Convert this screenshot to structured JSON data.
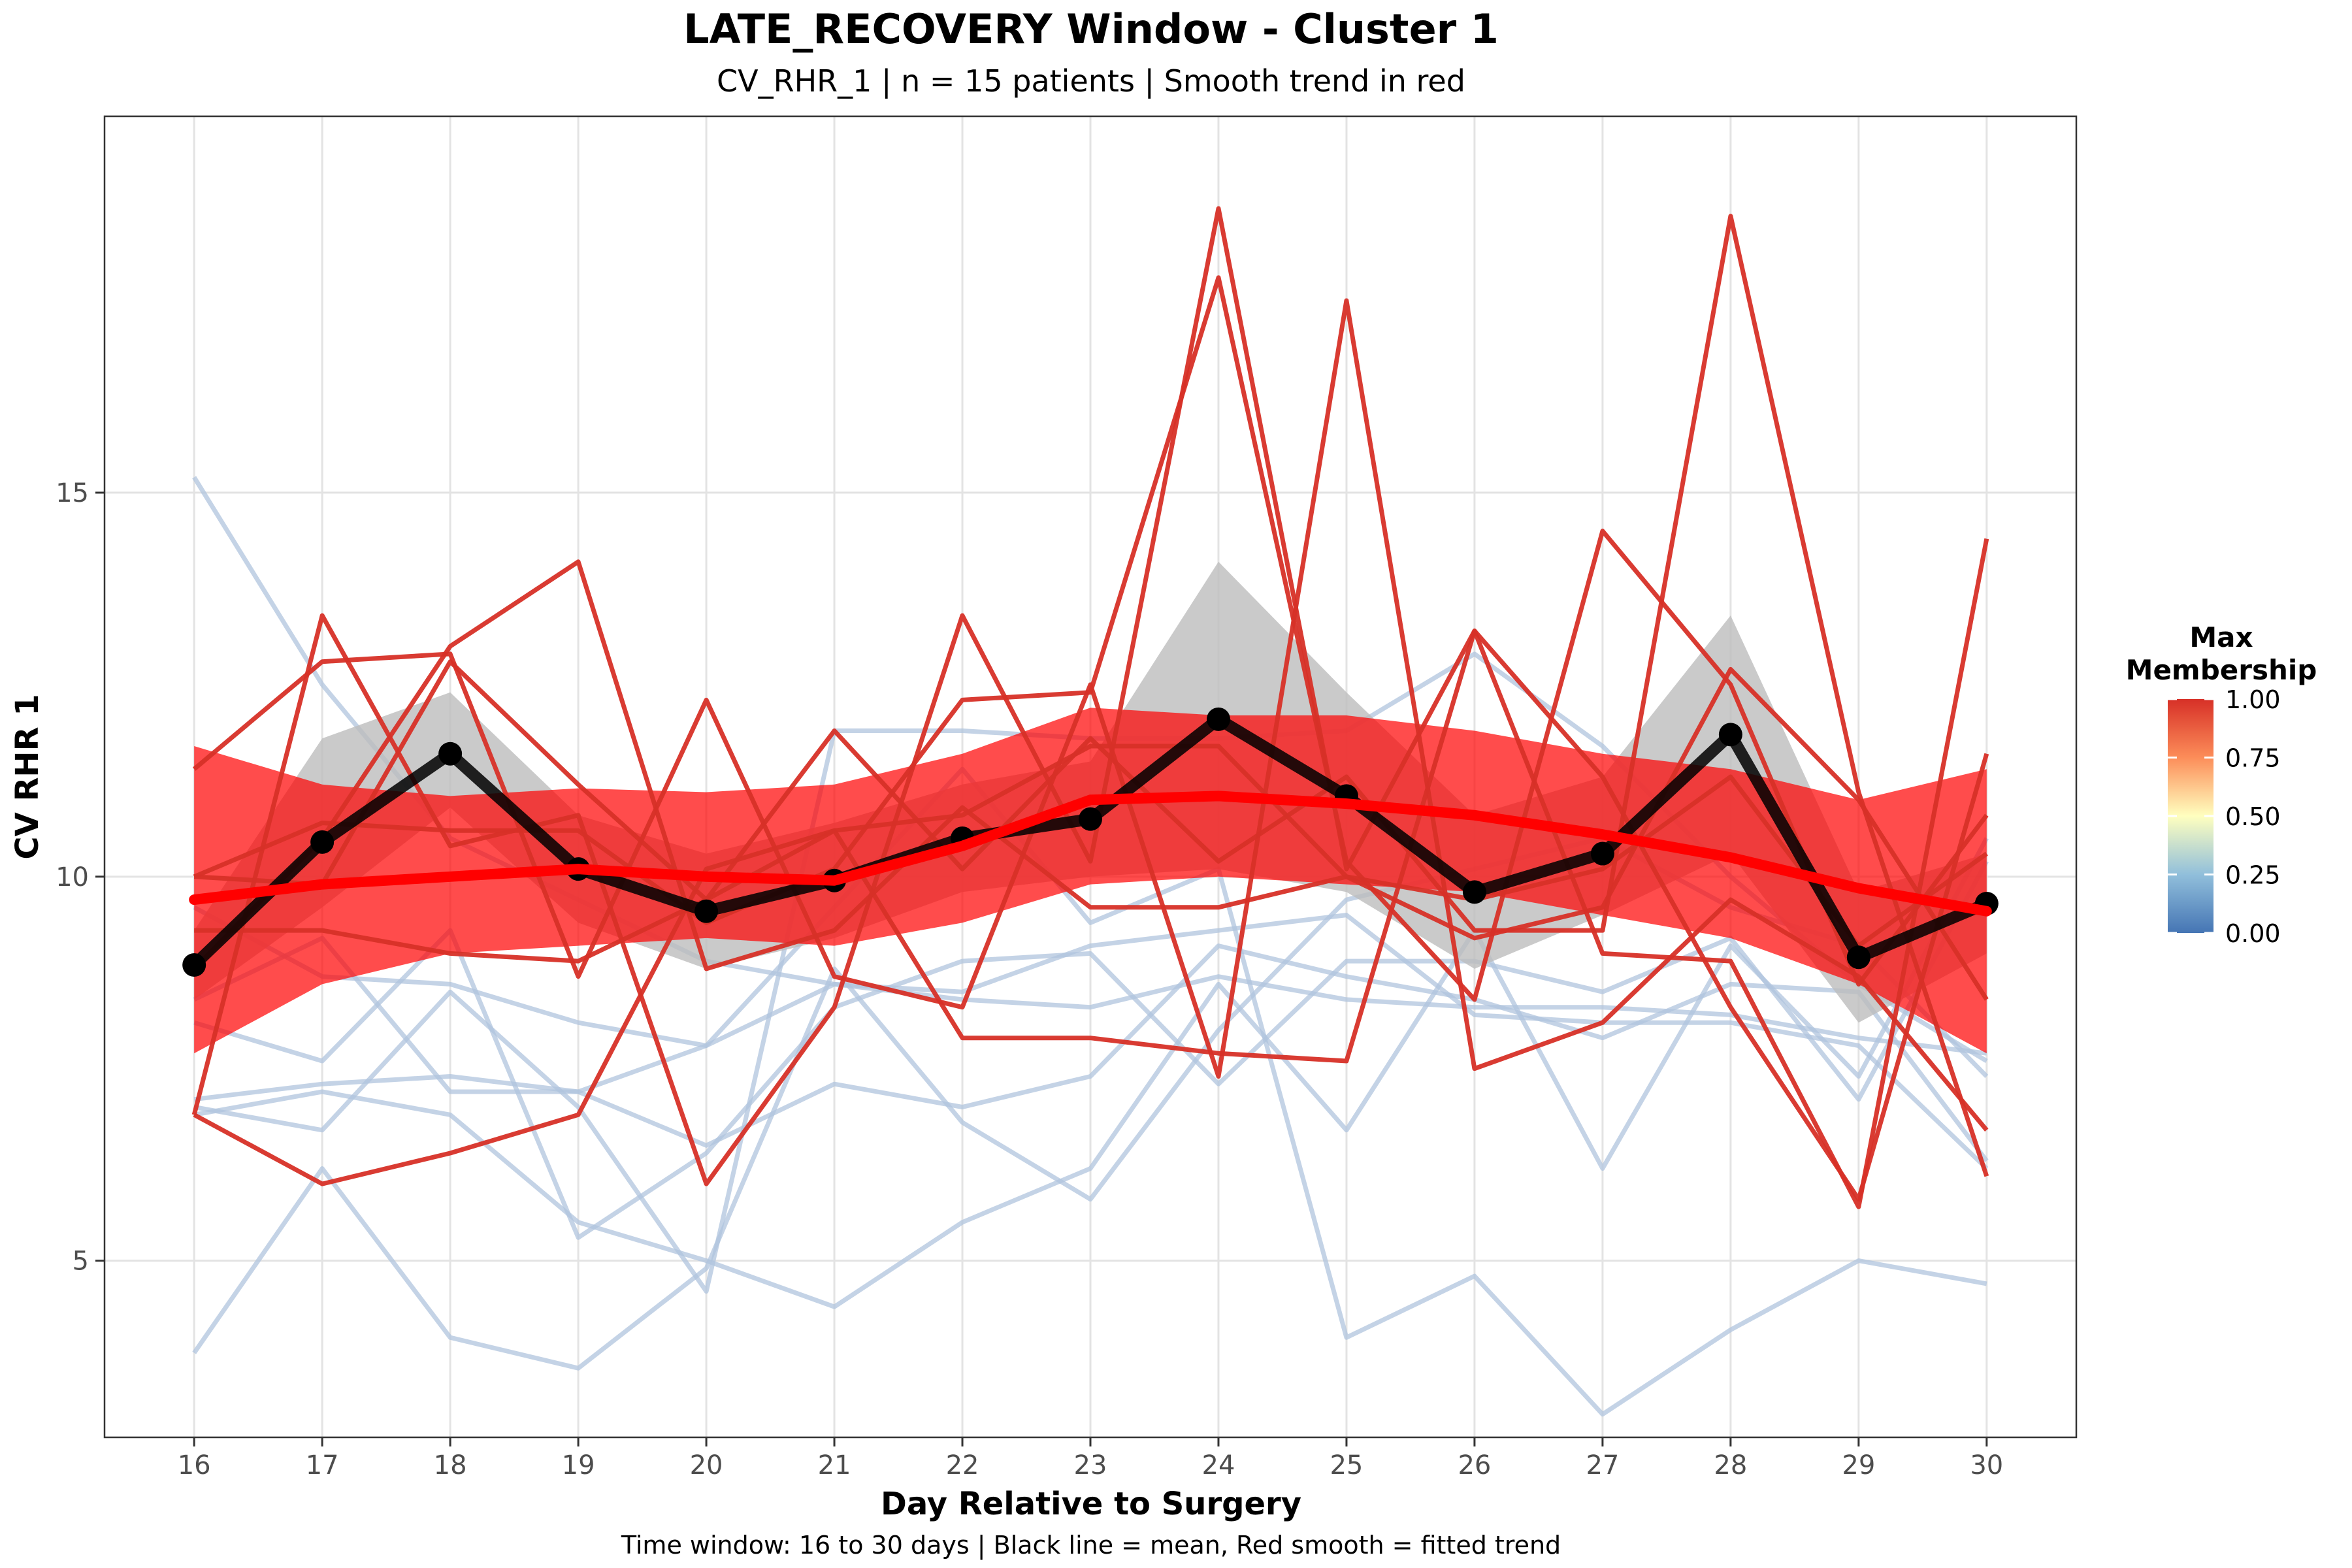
{
  "chart_data": {
    "type": "line",
    "title": "LATE_RECOVERY Window - Cluster 1",
    "subtitle": "CV_RHR_1 | n = 15 patients | Smooth trend in red",
    "caption": "Time window: 16 to 30 days | Black line = mean, Red smooth = fitted trend",
    "xlabel": "Day Relative to Surgery",
    "ylabel": "CV RHR 1",
    "x": [
      16,
      17,
      18,
      19,
      20,
      21,
      22,
      23,
      24,
      25,
      26,
      27,
      28,
      29,
      30
    ],
    "x_ticks": [
      "16",
      "17",
      "18",
      "19",
      "20",
      "21",
      "22",
      "23",
      "24",
      "25",
      "26",
      "27",
      "28",
      "29",
      "30"
    ],
    "y_ticks": [
      5,
      10,
      15
    ],
    "xlim": [
      15.3,
      30.7
    ],
    "ylim": [
      2.7,
      19.9
    ],
    "grid": true,
    "legend": {
      "title_lines": [
        "Max",
        "Membership"
      ],
      "type": "colorbar",
      "placement": "right",
      "breaks": [
        0.0,
        0.25,
        0.5,
        0.75,
        1.0
      ],
      "break_labels": [
        "0.00",
        "0.25",
        "0.50",
        "0.75",
        "1.00"
      ],
      "colors": [
        "#4575b4",
        "#91bfdb",
        "#ffffbf",
        "#fc8d59",
        "#d73027"
      ]
    },
    "colors": {
      "high_membership": "#d73027",
      "low_membership": "#b0c4de",
      "mean_line": "#000000",
      "mean_ribbon": "#bdbdbd",
      "smooth": "#ff0000"
    },
    "series": [
      {
        "membership": 0.3,
        "values": [
          15.2,
          12.5,
          10.5,
          9.7,
          8.9,
          8.6,
          8.4,
          8.3,
          8.7,
          8.4,
          8.3,
          8.3,
          8.2,
          7.9,
          7.7
        ]
      },
      {
        "membership": 0.3,
        "values": [
          9.6,
          8.7,
          8.6,
          8.1,
          7.8,
          8.6,
          8.5,
          9.1,
          9.3,
          9.5,
          8.2,
          8.1,
          8.1,
          7.8,
          6.2
        ]
      },
      {
        "membership": 0.3,
        "values": [
          7.0,
          6.7,
          8.5,
          7.0,
          4.6,
          11.9,
          11.9,
          11.8,
          11.8,
          11.9,
          12.9,
          11.7,
          10.0,
          8.6,
          7.6
        ]
      },
      {
        "membership": 0.3,
        "values": [
          7.1,
          7.3,
          7.4,
          7.2,
          6.5,
          7.3,
          7.0,
          7.4,
          9.1,
          8.7,
          8.4,
          7.9,
          8.6,
          8.5,
          6.3
        ]
      },
      {
        "membership": 0.3,
        "values": [
          8.1,
          7.6,
          9.3,
          5.3,
          6.4,
          8.3,
          8.9,
          9.0,
          7.3,
          8.9,
          8.9,
          8.5,
          9.2,
          7.1,
          10.2
        ]
      },
      {
        "membership": 0.3,
        "values": [
          6.9,
          7.2,
          6.9,
          5.5,
          5.0,
          4.4,
          5.5,
          6.2,
          8.6,
          6.7,
          9.3,
          6.2,
          9.1,
          7.4,
          10.5
        ]
      },
      {
        "membership": 0.3,
        "values": [
          3.8,
          6.2,
          4.0,
          3.6,
          4.9,
          8.8,
          6.8,
          5.8,
          8.0,
          9.7,
          10.1,
          10.5,
          9.6,
          9.1,
          7.4
        ]
      },
      {
        "membership": 0.3,
        "values": [
          8.4,
          9.2,
          7.2,
          7.2,
          7.8,
          9.6,
          11.4,
          9.4,
          10.1,
          4.0,
          4.8,
          3.0,
          4.1,
          5.0,
          4.7
        ]
      },
      {
        "membership": 1.0,
        "values": [
          11.4,
          12.8,
          12.9,
          8.7,
          12.3,
          8.7,
          8.3,
          12.5,
          7.4,
          17.5,
          7.5,
          8.1,
          9.7,
          8.7,
          6.7
        ]
      },
      {
        "membership": 1.0,
        "values": [
          6.9,
          13.4,
          10.4,
          10.8,
          6.0,
          8.3,
          13.4,
          10.2,
          18.7,
          10.1,
          13.2,
          9.0,
          8.9,
          5.7,
          14.4
        ]
      },
      {
        "membership": 1.0,
        "values": [
          9.3,
          9.3,
          9.0,
          8.9,
          9.7,
          11.9,
          10.1,
          11.8,
          10.2,
          11.3,
          9.3,
          9.3,
          18.6,
          11.1,
          6.1
        ]
      },
      {
        "membership": 1.0,
        "values": [
          6.9,
          6.0,
          6.4,
          6.9,
          10.1,
          10.6,
          7.9,
          7.9,
          7.7,
          7.6,
          13.2,
          11.3,
          8.3,
          5.8,
          11.6
        ]
      },
      {
        "membership": 1.0,
        "values": [
          10.0,
          10.7,
          10.6,
          10.6,
          9.4,
          10.1,
          12.3,
          12.4,
          17.8,
          10.2,
          8.4,
          14.5,
          12.5,
          8.6,
          10.8
        ]
      },
      {
        "membership": 1.0,
        "values": [
          8.8,
          10.5,
          13.0,
          14.1,
          8.8,
          9.3,
          10.9,
          9.6,
          9.6,
          10.0,
          9.2,
          9.6,
          12.7,
          11.0,
          8.4
        ]
      },
      {
        "membership": 1.0,
        "values": [
          10.0,
          9.9,
          12.8,
          11.2,
          9.7,
          10.6,
          10.8,
          11.7,
          11.7,
          10.0,
          9.7,
          10.1,
          11.3,
          9.1,
          10.3
        ]
      }
    ],
    "mean": {
      "values": [
        8.85,
        10.45,
        11.6,
        10.1,
        9.55,
        9.95,
        10.5,
        10.75,
        12.05,
        11.05,
        9.8,
        10.3,
        11.85,
        8.95,
        9.65
      ],
      "ribbon_lower": [
        8.4,
        9.6,
        10.9,
        9.4,
        8.8,
        9.2,
        9.8,
        10.0,
        10.1,
        9.8,
        8.8,
        9.5,
        10.3,
        8.1,
        9.0
      ],
      "ribbon_upper": [
        9.3,
        11.8,
        12.4,
        10.8,
        10.3,
        10.7,
        11.2,
        11.5,
        14.1,
        12.4,
        10.8,
        11.3,
        13.4,
        9.8,
        10.3
      ]
    },
    "smooth": {
      "values": [
        9.7,
        9.9,
        10.0,
        10.1,
        10.0,
        9.95,
        10.4,
        11.0,
        11.05,
        10.95,
        10.8,
        10.55,
        10.25,
        9.85,
        9.55
      ],
      "lower": [
        7.7,
        8.6,
        9.0,
        9.1,
        9.2,
        9.1,
        9.4,
        9.9,
        10.0,
        9.9,
        9.8,
        9.5,
        9.2,
        8.6,
        7.7
      ],
      "upper": [
        11.7,
        11.2,
        11.05,
        11.15,
        11.1,
        11.2,
        11.6,
        12.2,
        12.1,
        12.1,
        11.9,
        11.6,
        11.4,
        11.0,
        11.4
      ]
    }
  }
}
